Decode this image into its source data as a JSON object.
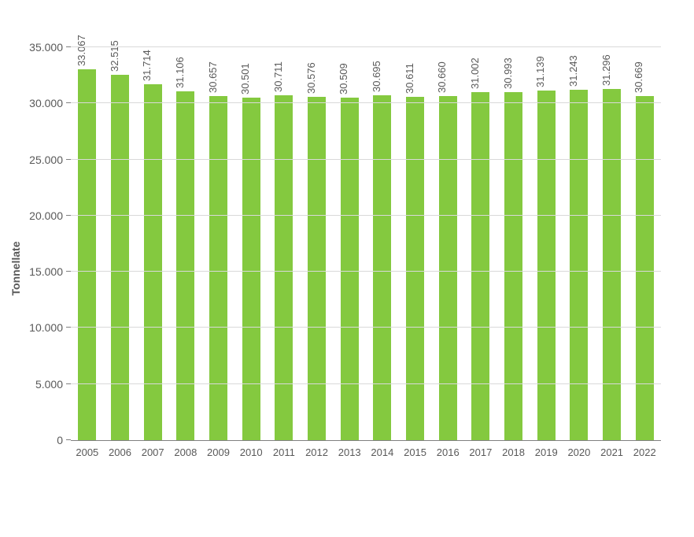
{
  "chart": {
    "type": "bar",
    "y_axis_title": "Tonnellate",
    "categories": [
      "2005",
      "2006",
      "2007",
      "2008",
      "2009",
      "2010",
      "2011",
      "2012",
      "2013",
      "2014",
      "2015",
      "2016",
      "2017",
      "2018",
      "2019",
      "2020",
      "2021",
      "2022"
    ],
    "values": [
      33067,
      32515,
      31714,
      31106,
      30657,
      30501,
      30711,
      30576,
      30509,
      30695,
      30611,
      30660,
      31002,
      30993,
      31139,
      31243,
      31296,
      30669
    ],
    "value_labels": [
      "33.067",
      "32.515",
      "31.714",
      "31.106",
      "30.657",
      "30.501",
      "30.711",
      "30.576",
      "30.509",
      "30.695",
      "30.611",
      "30.660",
      "31.002",
      "30.993",
      "31.139",
      "31.243",
      "31.296",
      "30.669"
    ],
    "ylim": [
      0,
      35000
    ],
    "ytick_step": 5000,
    "ytick_labels": [
      "0",
      "5.000",
      "10.000",
      "15.000",
      "20.000",
      "25.000",
      "30.000",
      "35.000"
    ],
    "bar_color": "#84c93f",
    "grid_color": "#d9d9d9",
    "axis_color": "#808080",
    "text_color": "#595959",
    "background_color": "#ffffff",
    "bar_width_ratio": 0.55,
    "label_fontsize": 14,
    "tick_fontsize": 13,
    "value_fontsize": 13
  }
}
